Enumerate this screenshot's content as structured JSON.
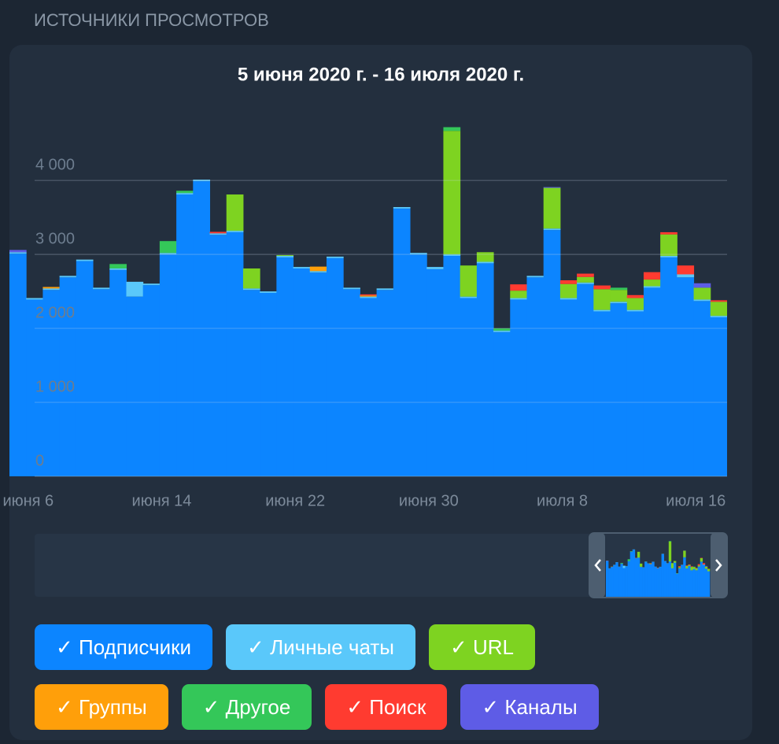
{
  "header": {
    "title": "ИСТОЧНИКИ ПРОСМОТРОВ"
  },
  "chart_data": {
    "type": "stacked_bar",
    "title": "5 июня 2020 г. - 16 июля 2020 г.",
    "categories": [
      null,
      "июня 6",
      null,
      null,
      null,
      null,
      null,
      null,
      null,
      "июня 14",
      null,
      null,
      null,
      null,
      null,
      null,
      null,
      "июня 22",
      null,
      null,
      null,
      null,
      null,
      null,
      null,
      "июня 30",
      null,
      null,
      null,
      null,
      null,
      null,
      null,
      "июля 8",
      null,
      null,
      null,
      null,
      null,
      null,
      null,
      "июля 16",
      null
    ],
    "ylim": [
      0,
      4800
    ],
    "yticks": [
      0,
      {
        "value": 1000,
        "label": "1 000"
      },
      {
        "value": 2000,
        "label": "2 000"
      },
      {
        "value": 3000,
        "label": "3 000"
      },
      {
        "value": 4000,
        "label": "4 000"
      }
    ],
    "grid": true,
    "series": [
      {
        "name": "Подписчики",
        "color": "#0c85ff",
        "values": [
          3010,
          2390,
          2520,
          2690,
          2910,
          2530,
          2790,
          2430,
          2585,
          3000,
          3810,
          3990,
          3265,
          3300,
          2520,
          2480,
          2960,
          2810,
          2755,
          2950,
          2530,
          2410,
          2520,
          3620,
          3000,
          2800,
          2980,
          2410,
          2880,
          1950,
          2390,
          2690,
          3330,
          2390,
          2600,
          2230,
          2340,
          2230,
          2550,
          2960,
          2690,
          2370,
          2150
        ]
      },
      {
        "name": "Личные чаты",
        "color": "#5ac8fa",
        "values": [
          20,
          20,
          20,
          20,
          20,
          20,
          20,
          200,
          20,
          20,
          20,
          20,
          20,
          20,
          20,
          20,
          20,
          20,
          20,
          20,
          20,
          20,
          20,
          20,
          20,
          30,
          20,
          20,
          20,
          20,
          20,
          20,
          20,
          20,
          20,
          20,
          20,
          20,
          20,
          20,
          40,
          20,
          20
        ]
      },
      {
        "name": "URL",
        "color": "#7ed321",
        "values": [
          0,
          0,
          0,
          0,
          0,
          0,
          0,
          0,
          0,
          0,
          0,
          0,
          0,
          490,
          270,
          0,
          10,
          0,
          0,
          0,
          0,
          0,
          0,
          0,
          0,
          0,
          1670,
          420,
          130,
          0,
          100,
          0,
          550,
          190,
          75,
          280,
          160,
          160,
          90,
          290,
          0,
          160,
          190
        ]
      },
      {
        "name": "Группы",
        "color": "#ff9f0a",
        "values": [
          0,
          0,
          20,
          0,
          0,
          0,
          0,
          0,
          0,
          0,
          0,
          0,
          0,
          0,
          0,
          0,
          0,
          0,
          60,
          0,
          0,
          15,
          0,
          0,
          0,
          0,
          0,
          0,
          0,
          0,
          0,
          0,
          0,
          0,
          0,
          0,
          0,
          0,
          0,
          0,
          0,
          0,
          0
        ]
      },
      {
        "name": "Другое",
        "color": "#34c759",
        "values": [
          0,
          0,
          0,
          0,
          0,
          0,
          60,
          0,
          0,
          160,
          30,
          0,
          0,
          0,
          0,
          0,
          0,
          0,
          0,
          0,
          0,
          0,
          0,
          0,
          0,
          0,
          50,
          0,
          0,
          30,
          0,
          0,
          0,
          0,
          0,
          0,
          30,
          0,
          0,
          0,
          0,
          0,
          0
        ]
      },
      {
        "name": "Поиск",
        "color": "#ff3b30",
        "values": [
          0,
          0,
          0,
          0,
          0,
          0,
          0,
          0,
          0,
          0,
          0,
          0,
          20,
          0,
          0,
          0,
          0,
          0,
          0,
          0,
          0,
          15,
          0,
          0,
          0,
          0,
          0,
          0,
          0,
          0,
          85,
          0,
          0,
          50,
          45,
          50,
          0,
          40,
          100,
          30,
          120,
          0,
          20
        ]
      },
      {
        "name": "Каналы",
        "color": "#5e5ce6",
        "values": [
          30,
          0,
          0,
          0,
          0,
          0,
          0,
          0,
          0,
          0,
          0,
          0,
          0,
          0,
          0,
          0,
          0,
          0,
          0,
          0,
          0,
          0,
          0,
          0,
          0,
          0,
          0,
          0,
          0,
          0,
          0,
          0,
          10,
          0,
          0,
          0,
          0,
          0,
          0,
          0,
          0,
          60,
          0
        ]
      }
    ]
  }
}
